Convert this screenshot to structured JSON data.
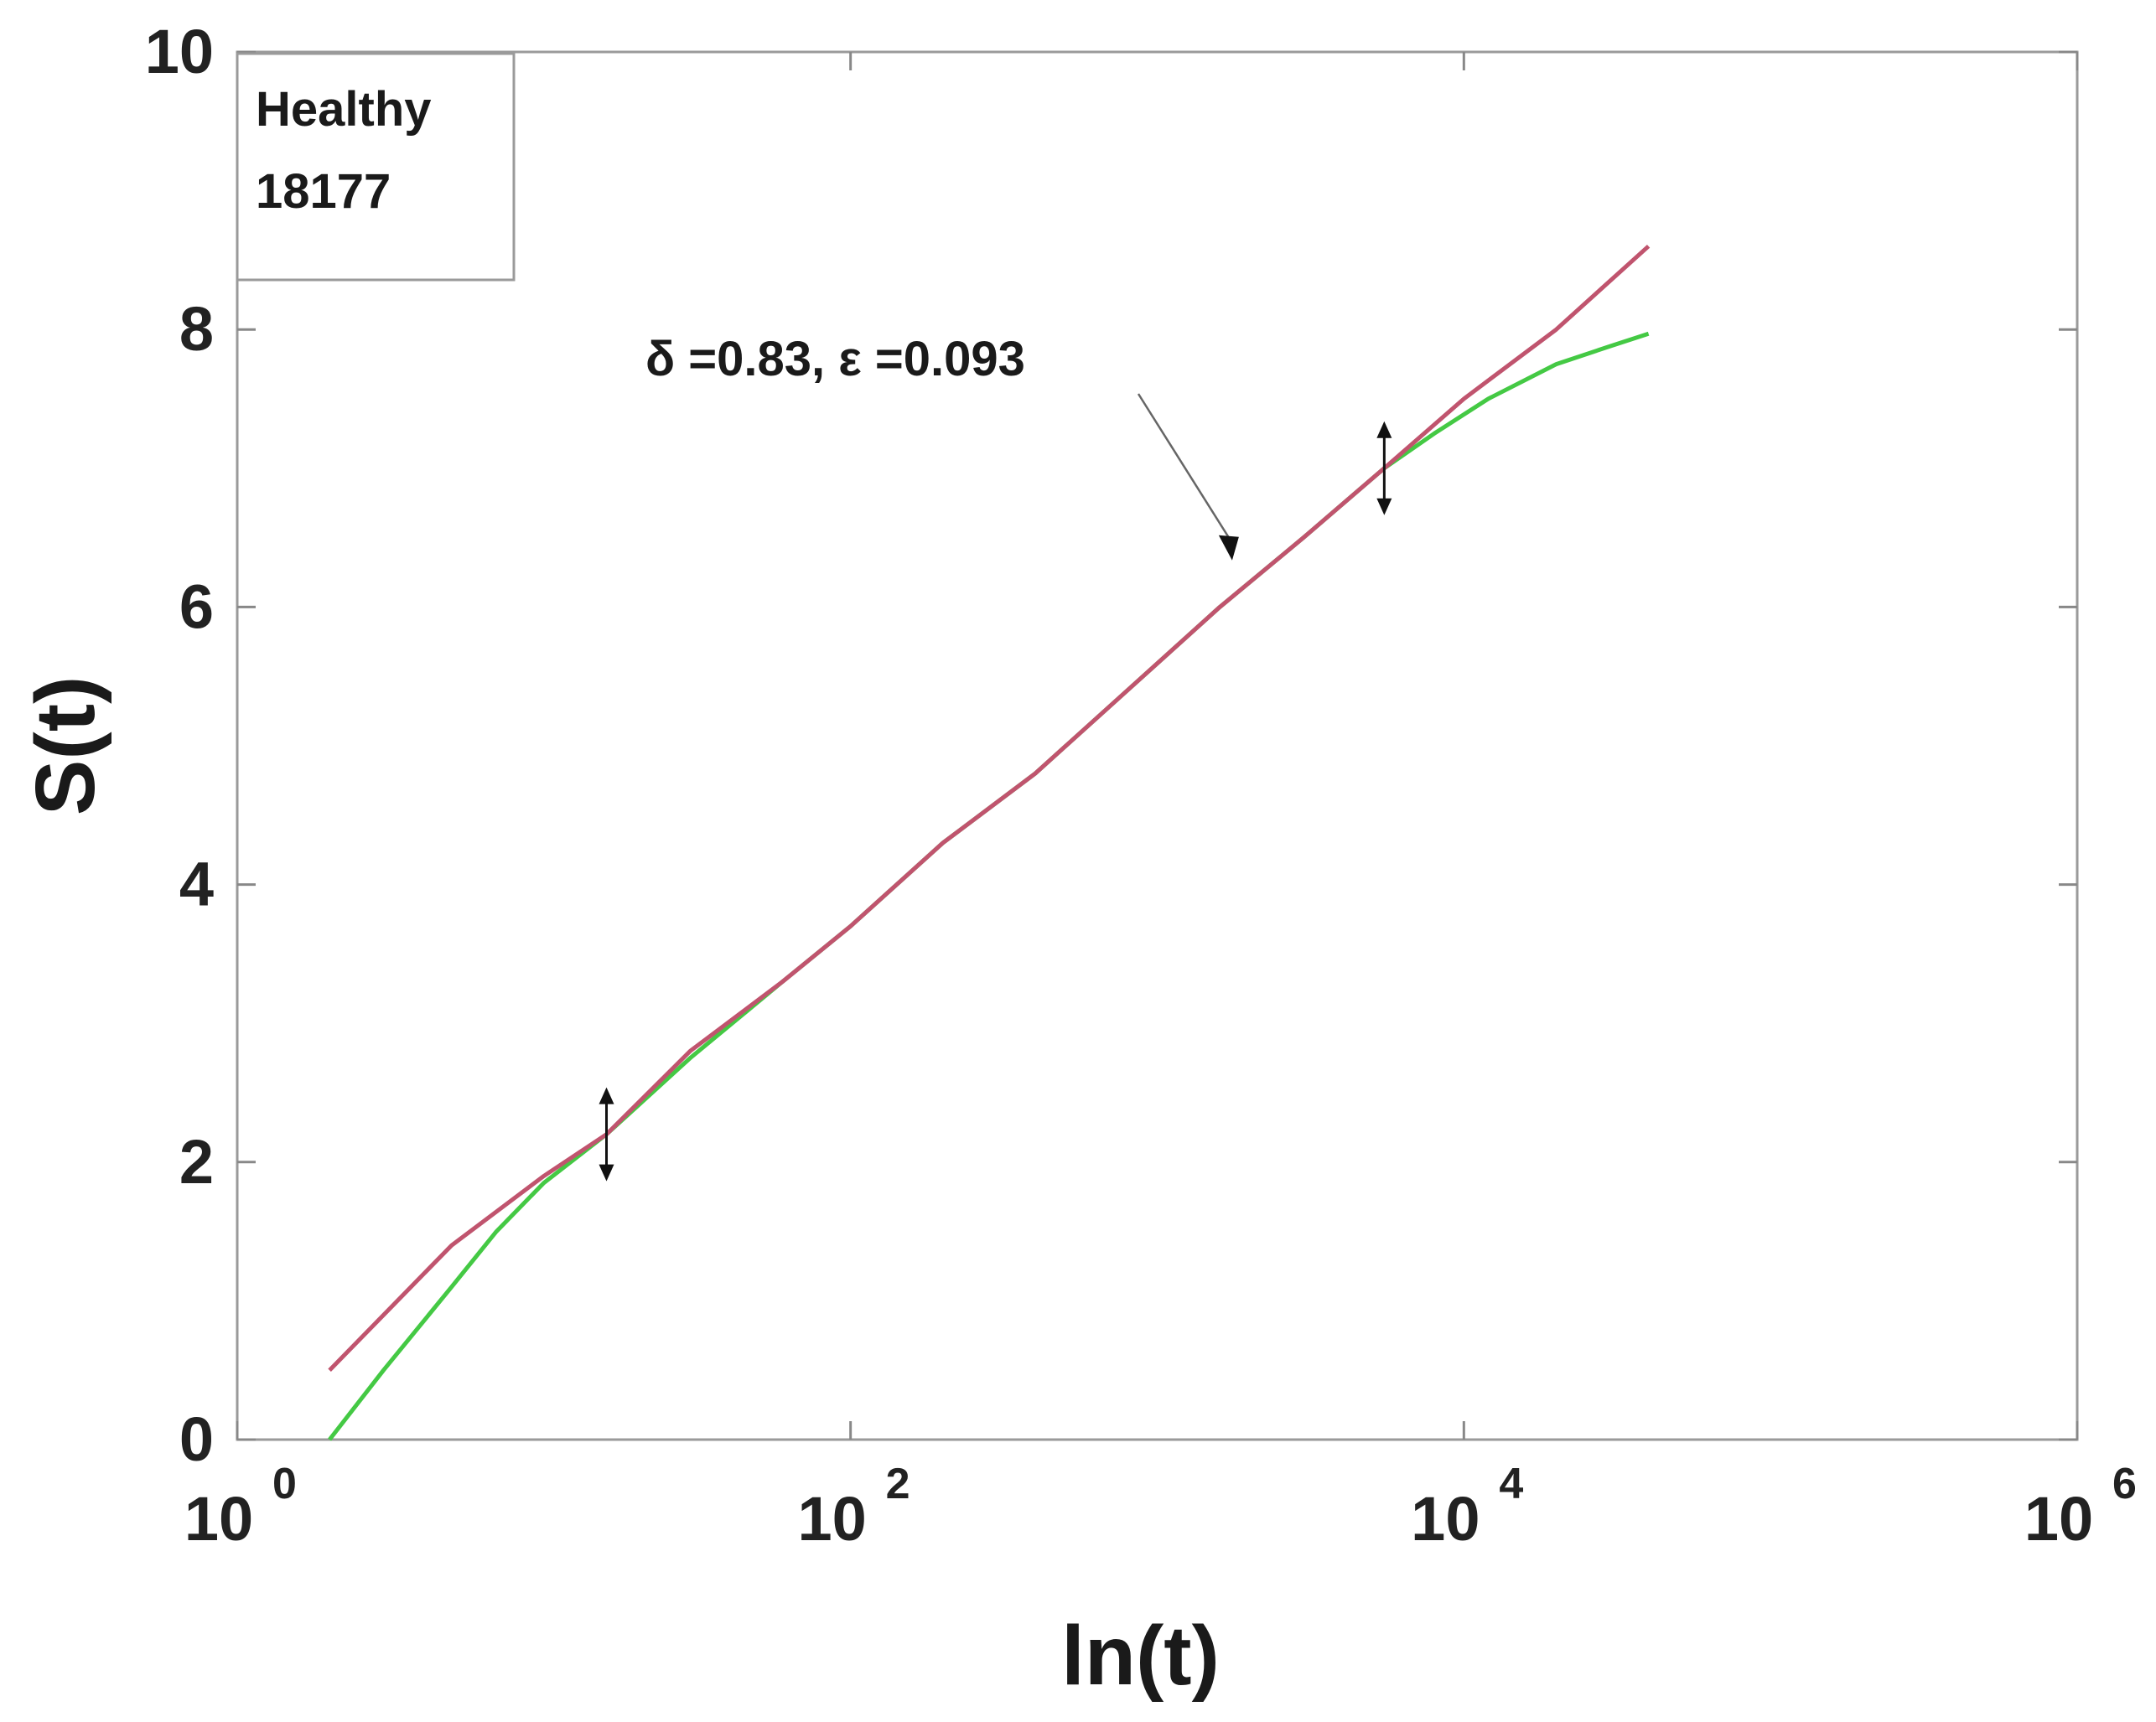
{
  "chart_data": {
    "type": "line",
    "xscale": "log",
    "xlim": [
      1,
      1000000
    ],
    "ylim": [
      0,
      10
    ],
    "xlabel": "ln(t)",
    "ylabel": "S(t)",
    "x_ticks": [
      {
        "value": 1,
        "base": "10",
        "exp": "0"
      },
      {
        "value": 100,
        "base": "10",
        "exp": "2"
      },
      {
        "value": 10000,
        "base": "10",
        "exp": "4"
      },
      {
        "value": 1000000,
        "base": "10",
        "exp": "6"
      }
    ],
    "y_ticks": [
      {
        "value": 0,
        "label": "0"
      },
      {
        "value": 2,
        "label": "2"
      },
      {
        "value": 4,
        "label": "4"
      },
      {
        "value": 6,
        "label": "6"
      },
      {
        "value": 8,
        "label": "8"
      },
      {
        "value": 10,
        "label": "10"
      }
    ],
    "legend": {
      "line1": "Healthy",
      "line2": "18177",
      "position": "top-left"
    },
    "annotation": {
      "text": "δ =0.83,  ε =0.093",
      "x": 1800,
      "y": 6.3
    },
    "fit_range_markers": [
      {
        "x": 16,
        "y": 2.2
      },
      {
        "x": 5500,
        "y": 7.0
      }
    ],
    "series": [
      {
        "color": "#c0546e",
        "x": [
          2,
          5,
          10,
          16,
          30,
          60,
          100,
          200,
          400,
          800,
          1600,
          3000,
          5500,
          10000,
          20000,
          40000
        ],
        "y": [
          0.5,
          1.4,
          1.9,
          2.2,
          2.8,
          3.3,
          3.7,
          4.3,
          4.8,
          5.4,
          6.0,
          6.5,
          7.0,
          7.5,
          8.0,
          8.6
        ]
      },
      {
        "color": "#44c944",
        "x": [
          2,
          3,
          5,
          7,
          10,
          16,
          30,
          60,
          100,
          200,
          400,
          800,
          1600,
          3000,
          5500,
          8000,
          12000,
          20000,
          30000,
          40000
        ],
        "y": [
          0.0,
          0.5,
          1.1,
          1.5,
          1.85,
          2.2,
          2.75,
          3.3,
          3.7,
          4.3,
          4.8,
          5.4,
          6.0,
          6.5,
          7.0,
          7.25,
          7.5,
          7.75,
          7.88,
          7.97
        ]
      }
    ]
  }
}
